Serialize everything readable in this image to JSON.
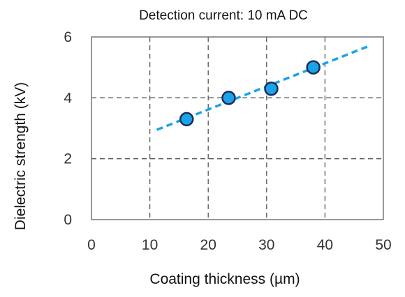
{
  "chart_data": {
    "type": "scatter",
    "title": "Detection current: 10 mA DC",
    "xlabel": "Coating thickness (µm)",
    "ylabel": "Dielectric strength (kV)",
    "xlim": [
      0,
      50
    ],
    "ylim": [
      0,
      6
    ],
    "xticks": [
      0,
      10,
      20,
      30,
      40,
      50
    ],
    "yticks": [
      0,
      2,
      4,
      6
    ],
    "xtick_labels": [
      "0",
      "10",
      "20",
      "30",
      "40",
      "50"
    ],
    "ytick_labels": [
      "0",
      "2",
      "4",
      "6"
    ],
    "grid": true,
    "legend": "none",
    "series": [
      {
        "points": [
          {
            "x": 16.3,
            "y": 3.3
          },
          {
            "x": 23.5,
            "y": 4.0
          },
          {
            "x": 30.8,
            "y": 4.3
          },
          {
            "x": 38.0,
            "y": 5.0
          }
        ],
        "marker_color": "#1aa3e8",
        "marker_edge": "#1a2d5a"
      }
    ],
    "trendline": {
      "type": "linear",
      "from": {
        "x": 11.2,
        "y": 2.95
      },
      "to": {
        "x": 47.5,
        "y": 5.7
      },
      "color": "#1aa3e8",
      "style": "dashed"
    }
  }
}
